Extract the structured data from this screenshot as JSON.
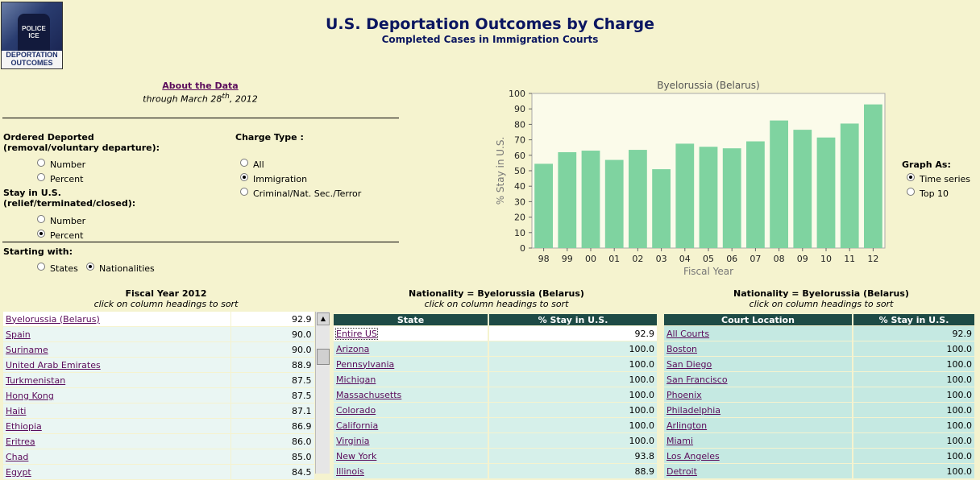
{
  "logo": {
    "vest_text_1": "POLICE",
    "vest_text_2": "ICE",
    "caption_1": "DEPORTATION",
    "caption_2": "OUTCOMES"
  },
  "header": {
    "title": "U.S. Deportation Outcomes by Charge",
    "subtitle": "Completed Cases in Immigration Courts"
  },
  "about": {
    "link": "About the Data",
    "through_prefix": "through March 28",
    "through_sup": "th",
    "through_suffix": ", 2012"
  },
  "controls": {
    "ordered_label_1": "Ordered Deported",
    "ordered_label_2": "(removal/voluntary departure):",
    "ordered_options": [
      "Number",
      "Percent"
    ],
    "stay_label_1": "Stay in U.S.",
    "stay_label_2": "(relief/terminated/closed):",
    "stay_options": [
      "Number",
      "Percent"
    ],
    "charge_label": "Charge Type :",
    "charge_options": [
      "All",
      "Immigration",
      "Criminal/Nat. Sec./Terror"
    ],
    "starting_label": "Starting with:",
    "starting_options": [
      "States",
      "Nationalities"
    ],
    "graph_as_label": "Graph As:",
    "graph_options": [
      "Time series",
      "Top 10"
    ]
  },
  "chart_data": {
    "type": "bar",
    "title": "Byelorussia (Belarus)",
    "xlabel": "Fiscal Year",
    "ylabel": "% Stay in U.S.",
    "ylim": [
      0,
      100
    ],
    "yticks": [
      0,
      10,
      20,
      30,
      40,
      50,
      60,
      70,
      80,
      90,
      100
    ],
    "categories": [
      "98",
      "99",
      "00",
      "01",
      "02",
      "03",
      "04",
      "05",
      "06",
      "07",
      "08",
      "09",
      "10",
      "11",
      "12"
    ],
    "values": [
      54.5,
      62,
      63,
      57,
      63.5,
      51,
      67.5,
      65.5,
      64.5,
      69,
      82.5,
      76.5,
      71.5,
      80.5,
      92.9
    ],
    "bar_color": "#7fd3a0",
    "grid": false
  },
  "table1": {
    "heading": "Fiscal Year 2012",
    "subheading": "click on column headings to sort",
    "rows": [
      [
        "Byelorussia (Belarus)",
        "92.9"
      ],
      [
        "Spain",
        "90.0"
      ],
      [
        "Suriname",
        "90.0"
      ],
      [
        "United Arab Emirates",
        "88.9"
      ],
      [
        "Turkmenistan",
        "87.5"
      ],
      [
        "Hong Kong",
        "87.5"
      ],
      [
        "Haiti",
        "87.1"
      ],
      [
        "Ethiopia",
        "86.9"
      ],
      [
        "Eritrea",
        "86.0"
      ],
      [
        "Chad",
        "85.0"
      ],
      [
        "Egypt",
        "84.5"
      ]
    ]
  },
  "table2": {
    "heading": "Nationality = Byelorussia (Belarus)",
    "subheading": "click on column headings to sort",
    "columns": [
      "State",
      "% Stay in U.S."
    ],
    "rows": [
      [
        "Entire US",
        "92.9"
      ],
      [
        "Arizona",
        "100.0"
      ],
      [
        "Pennsylvania",
        "100.0"
      ],
      [
        "Michigan",
        "100.0"
      ],
      [
        "Massachusetts",
        "100.0"
      ],
      [
        "Colorado",
        "100.0"
      ],
      [
        "California",
        "100.0"
      ],
      [
        "Virginia",
        "100.0"
      ],
      [
        "New York",
        "93.8"
      ],
      [
        "Illinois",
        "88.9"
      ]
    ]
  },
  "table3": {
    "heading": "Nationality = Byelorussia (Belarus)",
    "subheading": "click on column headings to sort",
    "columns": [
      "Court Location",
      "% Stay in U.S."
    ],
    "rows": [
      [
        "All Courts",
        "92.9"
      ],
      [
        "Boston",
        "100.0"
      ],
      [
        "San Diego",
        "100.0"
      ],
      [
        "San Francisco",
        "100.0"
      ],
      [
        "Phoenix",
        "100.0"
      ],
      [
        "Philadelphia",
        "100.0"
      ],
      [
        "Arlington",
        "100.0"
      ],
      [
        "Miami",
        "100.0"
      ],
      [
        "Los Angeles",
        "100.0"
      ],
      [
        "Detroit",
        "100.0"
      ]
    ]
  }
}
